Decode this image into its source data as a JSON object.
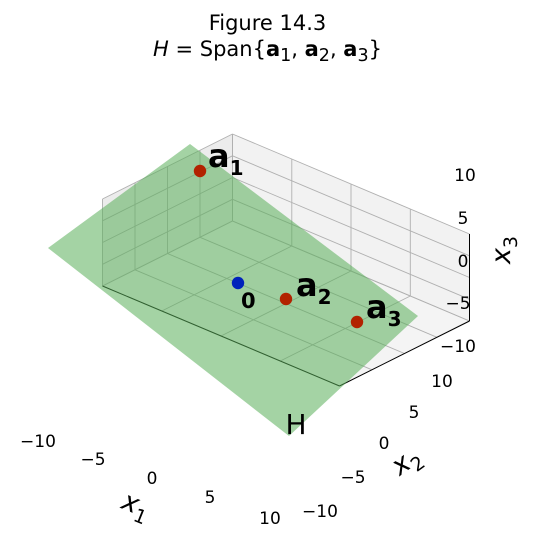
{
  "chart_data": {
    "type": "scatter3d",
    "title_line1": "Figure 14.3",
    "title_line2": {
      "var": "H",
      "eq": " = Span{",
      "v1": "a",
      "s1": "1",
      "v2": "a",
      "s2": "2",
      "v3": "a",
      "s3": "3",
      "close": "}",
      "comma": ", "
    },
    "axes": {
      "x": {
        "label": "x",
        "sub": "1",
        "range": [
          -10,
          10
        ],
        "ticks": [
          "−10",
          "−5",
          "0",
          "5",
          "10"
        ]
      },
      "y": {
        "label": "x",
        "sub": "2",
        "range": [
          -10,
          10
        ],
        "ticks": [
          "−10",
          "−5",
          "0",
          "5",
          "10"
        ]
      },
      "z": {
        "label": "x",
        "sub": "3",
        "range": [
          -10,
          10
        ],
        "ticks": [
          "−10",
          "−5",
          "0",
          "5",
          "10"
        ]
      }
    },
    "grid": true,
    "points": [
      {
        "name": "a",
        "sub": "1",
        "x": 2,
        "y": 2,
        "z": 8,
        "color": "#b22200"
      },
      {
        "name": "a",
        "sub": "2",
        "x": 4,
        "y": 2,
        "z": 0,
        "color": "#b22200"
      },
      {
        "name": "a",
        "sub": "3",
        "x": 8,
        "y": 2,
        "z": -4,
        "color": "#b22200"
      },
      {
        "name": "0",
        "sub": "",
        "x": 0,
        "y": 0,
        "z": 0,
        "color": "#0022bb"
      }
    ],
    "plane": {
      "label": "H",
      "color": "#5aaf5a"
    },
    "colors": {
      "pane": "#f2f2f2",
      "grid": "#b0b0b0",
      "edge": "#000000"
    }
  }
}
